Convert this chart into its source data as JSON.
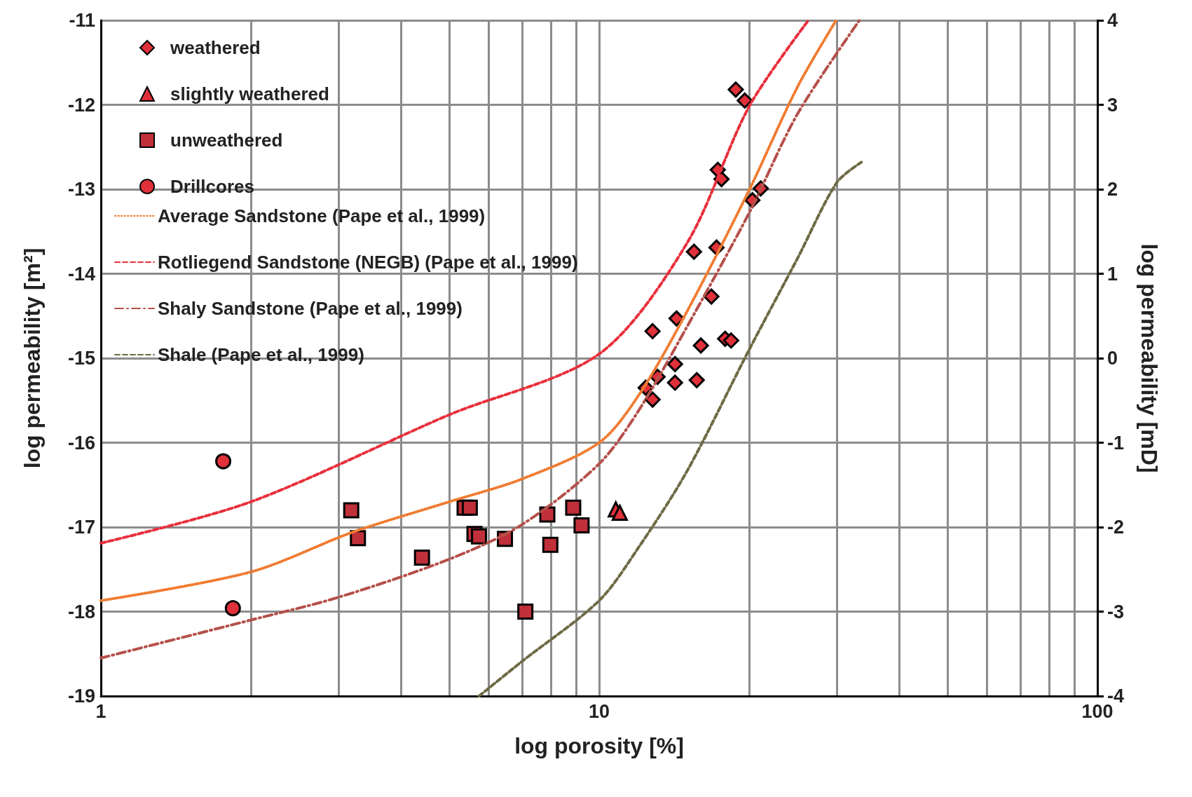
{
  "chart_data": {
    "type": "scatter",
    "xlabel": "log porosity [%]",
    "ylabel": "log permeability [m²]",
    "y2label": "log permeability [mD]",
    "log": "x",
    "grid": true,
    "legend": "top left",
    "xlim": [
      1,
      100
    ],
    "xticks": [
      1,
      {
        "value": 2,
        "label": null
      },
      {
        "value": 3,
        "label": null
      },
      {
        "value": 4,
        "label": null
      },
      {
        "value": 5,
        "label": null
      },
      {
        "value": 6,
        "label": null
      },
      {
        "value": 7,
        "label": null
      },
      {
        "value": 8,
        "label": null
      },
      {
        "value": 9,
        "label": null
      },
      10,
      {
        "value": 20,
        "label": null
      },
      {
        "value": 30,
        "label": null
      },
      {
        "value": 40,
        "label": null
      },
      {
        "value": 50,
        "label": null
      },
      {
        "value": 60,
        "label": null
      },
      {
        "value": 70,
        "label": null
      },
      {
        "value": 80,
        "label": null
      },
      {
        "value": 90,
        "label": null
      },
      100
    ],
    "ylim": [
      -19,
      -11
    ],
    "yticks": [
      -19,
      -18,
      -17,
      -16,
      -15,
      -14,
      -13,
      -12,
      -11
    ],
    "y2lim": [
      -4,
      4
    ],
    "y2ticks": [
      -4,
      -3,
      -2,
      -1,
      0,
      1,
      2,
      3,
      4
    ],
    "series": [
      {
        "name": "weathered",
        "marker": "diamond",
        "color": "#e0303a",
        "x": [
          18.8,
          19.6,
          17.3,
          17.6,
          21.1,
          20.3,
          15.5,
          17.2,
          16.8,
          14.3,
          12.8,
          16.0,
          17.9,
          18.4,
          14.2,
          13.1,
          12.4,
          12.8,
          14.2,
          15.7
        ],
        "values": [
          -11.82,
          -11.95,
          -12.77,
          -12.88,
          -12.99,
          -13.13,
          -13.74,
          -13.69,
          -14.27,
          -14.53,
          -14.68,
          -14.85,
          -14.77,
          -14.79,
          -15.07,
          -15.22,
          -15.35,
          -15.49,
          -15.29,
          -15.26
        ]
      },
      {
        "name": "slightly weathered",
        "marker": "triangle",
        "color": "#e0303a",
        "x": [
          10.8,
          11.0
        ],
        "values": [
          -16.79,
          -16.83
        ]
      },
      {
        "name": "unweathered",
        "marker": "square",
        "color": "#c0303a",
        "x": [
          3.18,
          3.28,
          4.41,
          5.37,
          5.5,
          5.62,
          5.74,
          6.47,
          7.11,
          7.87,
          7.98,
          8.87,
          9.22
        ],
        "values": [
          -16.8,
          -17.13,
          -17.36,
          -16.77,
          -16.77,
          -17.08,
          -17.11,
          -17.14,
          -18.0,
          -16.85,
          -17.21,
          -16.77,
          -16.98
        ]
      },
      {
        "name": "Drillcores",
        "marker": "circle",
        "color": "#e0303a",
        "x": [
          1.76,
          1.84
        ],
        "values": [
          -16.22,
          -17.96
        ]
      },
      {
        "name": "Average Sandstone (Pape et al., 1999)",
        "type": "line",
        "line_style": "dotted",
        "color": "#f07b30",
        "x": [
          1,
          2,
          3.2,
          5,
          7,
          10,
          12,
          15,
          20,
          25,
          29.9
        ],
        "values": [
          -17.87,
          -17.53,
          -17.06,
          -16.7,
          -16.43,
          -16.0,
          -15.44,
          -14.45,
          -13.01,
          -11.79,
          -11.0
        ]
      },
      {
        "name": "Rotliegend Sandstone (NEGB) (Pape et al., 1999)",
        "type": "line",
        "line_style": "dashed",
        "color": "#e8303c",
        "x": [
          1,
          2,
          5,
          10,
          15,
          20,
          26.3
        ],
        "values": [
          -17.19,
          -16.7,
          -15.67,
          -14.95,
          -13.64,
          -12.02,
          -11.0
        ]
      },
      {
        "name": "Shaly Sandstone (Pape et al., 1999)",
        "type": "line",
        "line_style": "dashdot",
        "color": "#b5504a",
        "x": [
          1,
          2,
          3,
          5,
          7,
          10,
          12,
          15,
          20,
          25,
          33.3
        ],
        "values": [
          -18.55,
          -18.1,
          -17.83,
          -17.38,
          -16.97,
          -16.25,
          -15.62,
          -14.63,
          -13.28,
          -12.11,
          -11.0
        ]
      },
      {
        "name": "Shale (Pape et al., 1999)",
        "type": "line",
        "line_style": "dashed",
        "color": "#6e6a45",
        "x": [
          5.74,
          7,
          10,
          12,
          15,
          20,
          25,
          30,
          33.6
        ],
        "values": [
          -19.0,
          -18.59,
          -17.87,
          -17.24,
          -16.34,
          -14.9,
          -13.82,
          -12.92,
          -12.68
        ]
      }
    ]
  }
}
